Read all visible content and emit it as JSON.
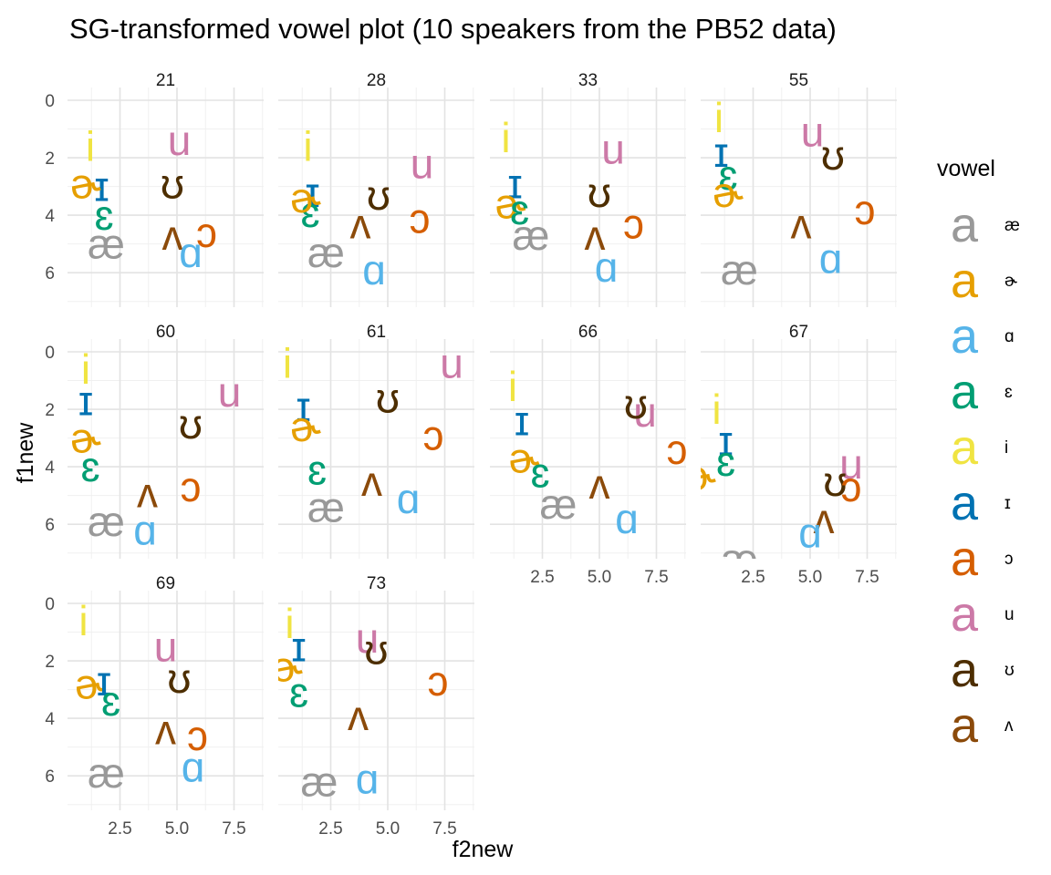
{
  "chart_data": {
    "type": "scatter",
    "title": "SG-transformed vowel plot (10 speakers from the PB52 data)",
    "xlabel": "f2new",
    "ylabel": "f1new",
    "xlim": [
      0.2,
      8.8
    ],
    "ylim": [
      0,
      7.2
    ],
    "y_reversed": true,
    "x_ticks": [
      "2.5",
      "5.0",
      "7.5"
    ],
    "y_ticks": [
      "0",
      "2",
      "4",
      "6"
    ],
    "grid": true,
    "legend": {
      "title": "vowel",
      "position": "right",
      "key_glyph": "a",
      "entries": [
        {
          "vowel": "æ",
          "color": "#999999"
        },
        {
          "vowel": "ɚ",
          "color": "#E69F00"
        },
        {
          "vowel": "ɑ",
          "color": "#56B4E9"
        },
        {
          "vowel": "ɛ",
          "color": "#009E73"
        },
        {
          "vowel": "i",
          "color": "#F0E442"
        },
        {
          "vowel": "ɪ",
          "color": "#0072B2"
        },
        {
          "vowel": "ɔ",
          "color": "#D55E00"
        },
        {
          "vowel": "u",
          "color": "#CC79A7"
        },
        {
          "vowel": "ʊ",
          "color": "#4D2E00"
        },
        {
          "vowel": "ʌ",
          "color": "#8B4A0A"
        }
      ]
    },
    "panels": [
      {
        "speaker": "21",
        "points": [
          {
            "vowel": "i",
            "x": 1.2,
            "y": 1.6
          },
          {
            "vowel": "ɪ",
            "x": 1.7,
            "y": 3.0
          },
          {
            "vowel": "ɛ",
            "x": 1.8,
            "y": 4.0
          },
          {
            "vowel": "æ",
            "x": 1.9,
            "y": 5.0
          },
          {
            "vowel": "ɚ",
            "x": 1.0,
            "y": 2.9
          },
          {
            "vowel": "u",
            "x": 5.1,
            "y": 1.4
          },
          {
            "vowel": "ʊ",
            "x": 4.8,
            "y": 2.9
          },
          {
            "vowel": "ʌ",
            "x": 4.8,
            "y": 4.7
          },
          {
            "vowel": "ɔ",
            "x": 6.3,
            "y": 4.6
          },
          {
            "vowel": "ɑ",
            "x": 5.6,
            "y": 5.3
          }
        ]
      },
      {
        "speaker": "28",
        "points": [
          {
            "vowel": "i",
            "x": 1.5,
            "y": 1.6
          },
          {
            "vowel": "ɪ",
            "x": 1.7,
            "y": 3.2
          },
          {
            "vowel": "ɛ",
            "x": 1.6,
            "y": 3.9
          },
          {
            "vowel": "ɚ",
            "x": 1.4,
            "y": 3.4
          },
          {
            "vowel": "æ",
            "x": 2.3,
            "y": 5.3
          },
          {
            "vowel": "u",
            "x": 6.5,
            "y": 2.2
          },
          {
            "vowel": "ʊ",
            "x": 4.6,
            "y": 3.3
          },
          {
            "vowel": "ʌ",
            "x": 3.8,
            "y": 4.3
          },
          {
            "vowel": "ɔ",
            "x": 6.4,
            "y": 4.1
          },
          {
            "vowel": "ɑ",
            "x": 4.4,
            "y": 5.9
          }
        ]
      },
      {
        "speaker": "33",
        "points": [
          {
            "vowel": "i",
            "x": 0.9,
            "y": 1.3
          },
          {
            "vowel": "ɪ",
            "x": 1.3,
            "y": 2.9
          },
          {
            "vowel": "ɚ",
            "x": 1.1,
            "y": 3.6
          },
          {
            "vowel": "ɛ",
            "x": 1.5,
            "y": 3.8
          },
          {
            "vowel": "æ",
            "x": 2.0,
            "y": 4.7
          },
          {
            "vowel": "u",
            "x": 5.6,
            "y": 1.7
          },
          {
            "vowel": "ʊ",
            "x": 5.0,
            "y": 3.2
          },
          {
            "vowel": "ʌ",
            "x": 4.8,
            "y": 4.7
          },
          {
            "vowel": "ɔ",
            "x": 6.5,
            "y": 4.3
          },
          {
            "vowel": "ɑ",
            "x": 5.3,
            "y": 5.8
          }
        ]
      },
      {
        "speaker": "55",
        "points": [
          {
            "vowel": "i",
            "x": 1.0,
            "y": 0.6
          },
          {
            "vowel": "ɪ",
            "x": 1.1,
            "y": 1.8
          },
          {
            "vowel": "ɛ",
            "x": 1.4,
            "y": 2.6
          },
          {
            "vowel": "ɚ",
            "x": 1.4,
            "y": 3.2
          },
          {
            "vowel": "u",
            "x": 5.1,
            "y": 1.1
          },
          {
            "vowel": "ʊ",
            "x": 6.0,
            "y": 1.9
          },
          {
            "vowel": "ʌ",
            "x": 4.6,
            "y": 4.3
          },
          {
            "vowel": "ɔ",
            "x": 7.4,
            "y": 3.8
          },
          {
            "vowel": "ɑ",
            "x": 5.9,
            "y": 5.5
          },
          {
            "vowel": "æ",
            "x": 1.9,
            "y": 5.9
          }
        ]
      },
      {
        "speaker": "60",
        "points": [
          {
            "vowel": "i",
            "x": 1.0,
            "y": 0.6
          },
          {
            "vowel": "ɪ",
            "x": 1.0,
            "y": 1.7
          },
          {
            "vowel": "ɚ",
            "x": 1.0,
            "y": 3.0
          },
          {
            "vowel": "ɛ",
            "x": 1.2,
            "y": 4.0
          },
          {
            "vowel": "æ",
            "x": 1.9,
            "y": 5.9
          },
          {
            "vowel": "u",
            "x": 7.3,
            "y": 1.4
          },
          {
            "vowel": "ʊ",
            "x": 5.6,
            "y": 2.5
          },
          {
            "vowel": "ʌ",
            "x": 3.7,
            "y": 4.9
          },
          {
            "vowel": "ɔ",
            "x": 5.6,
            "y": 4.7
          },
          {
            "vowel": "ɑ",
            "x": 3.6,
            "y": 6.2
          }
        ]
      },
      {
        "speaker": "61",
        "points": [
          {
            "vowel": "i",
            "x": 0.6,
            "y": 0.4
          },
          {
            "vowel": "ɪ",
            "x": 1.3,
            "y": 1.9
          },
          {
            "vowel": "ɚ",
            "x": 1.4,
            "y": 2.6
          },
          {
            "vowel": "ɛ",
            "x": 1.9,
            "y": 4.1
          },
          {
            "vowel": "æ",
            "x": 2.3,
            "y": 5.4
          },
          {
            "vowel": "u",
            "x": 7.8,
            "y": 0.4
          },
          {
            "vowel": "ʊ",
            "x": 5.0,
            "y": 1.6
          },
          {
            "vowel": "ɔ",
            "x": 7.0,
            "y": 2.9
          },
          {
            "vowel": "ʌ",
            "x": 4.3,
            "y": 4.5
          },
          {
            "vowel": "ɑ",
            "x": 5.9,
            "y": 5.1
          }
        ]
      },
      {
        "speaker": "66",
        "points": [
          {
            "vowel": "i",
            "x": 1.2,
            "y": 1.2
          },
          {
            "vowel": "ɪ",
            "x": 1.6,
            "y": 2.4
          },
          {
            "vowel": "ɚ",
            "x": 1.7,
            "y": 3.7
          },
          {
            "vowel": "ɛ",
            "x": 2.4,
            "y": 4.2
          },
          {
            "vowel": "æ",
            "x": 3.2,
            "y": 5.3
          },
          {
            "vowel": "u",
            "x": 7.0,
            "y": 2.1
          },
          {
            "vowel": "ʊ",
            "x": 6.6,
            "y": 1.8
          },
          {
            "vowel": "ɔ",
            "x": 8.4,
            "y": 3.4
          },
          {
            "vowel": "ʌ",
            "x": 5.0,
            "y": 4.6
          },
          {
            "vowel": "ɑ",
            "x": 6.2,
            "y": 5.8
          }
        ]
      },
      {
        "speaker": "67",
        "points": [
          {
            "vowel": "i",
            "x": 0.9,
            "y": 2.0
          },
          {
            "vowel": "ɪ",
            "x": 1.3,
            "y": 3.1
          },
          {
            "vowel": "ɛ",
            "x": 1.3,
            "y": 3.8
          },
          {
            "vowel": "ɚ",
            "x": 0.2,
            "y": 4.3
          },
          {
            "vowel": "u",
            "x": 6.8,
            "y": 3.9
          },
          {
            "vowel": "ʊ",
            "x": 6.1,
            "y": 4.5
          },
          {
            "vowel": "ɔ",
            "x": 6.8,
            "y": 4.7
          },
          {
            "vowel": "ʌ",
            "x": 5.6,
            "y": 5.8
          },
          {
            "vowel": "ɑ",
            "x": 5.0,
            "y": 6.3
          },
          {
            "vowel": "æ",
            "x": 1.9,
            "y": 7.2
          }
        ]
      },
      {
        "speaker": "69",
        "points": [
          {
            "vowel": "i",
            "x": 0.9,
            "y": 0.6
          },
          {
            "vowel": "ɚ",
            "x": 1.2,
            "y": 2.8
          },
          {
            "vowel": "ɪ",
            "x": 1.8,
            "y": 2.7
          },
          {
            "vowel": "ɛ",
            "x": 2.1,
            "y": 3.4
          },
          {
            "vowel": "æ",
            "x": 1.9,
            "y": 5.9
          },
          {
            "vowel": "u",
            "x": 4.5,
            "y": 1.5
          },
          {
            "vowel": "ʊ",
            "x": 5.1,
            "y": 2.6
          },
          {
            "vowel": "ʌ",
            "x": 4.5,
            "y": 4.4
          },
          {
            "vowel": "ɔ",
            "x": 5.9,
            "y": 4.6
          },
          {
            "vowel": "ɑ",
            "x": 5.7,
            "y": 5.7
          }
        ]
      },
      {
        "speaker": "73",
        "points": [
          {
            "vowel": "i",
            "x": 0.7,
            "y": 0.7
          },
          {
            "vowel": "ɪ",
            "x": 1.1,
            "y": 1.5
          },
          {
            "vowel": "ɚ",
            "x": 0.6,
            "y": 2.2
          },
          {
            "vowel": "ɛ",
            "x": 1.1,
            "y": 3.1
          },
          {
            "vowel": "æ",
            "x": 2.0,
            "y": 6.2
          },
          {
            "vowel": "u",
            "x": 4.1,
            "y": 1.2
          },
          {
            "vowel": "ʊ",
            "x": 4.5,
            "y": 1.6
          },
          {
            "vowel": "ʌ",
            "x": 3.7,
            "y": 3.9
          },
          {
            "vowel": "ɔ",
            "x": 7.2,
            "y": 2.7
          },
          {
            "vowel": "ɑ",
            "x": 4.1,
            "y": 6.1
          }
        ]
      }
    ]
  }
}
